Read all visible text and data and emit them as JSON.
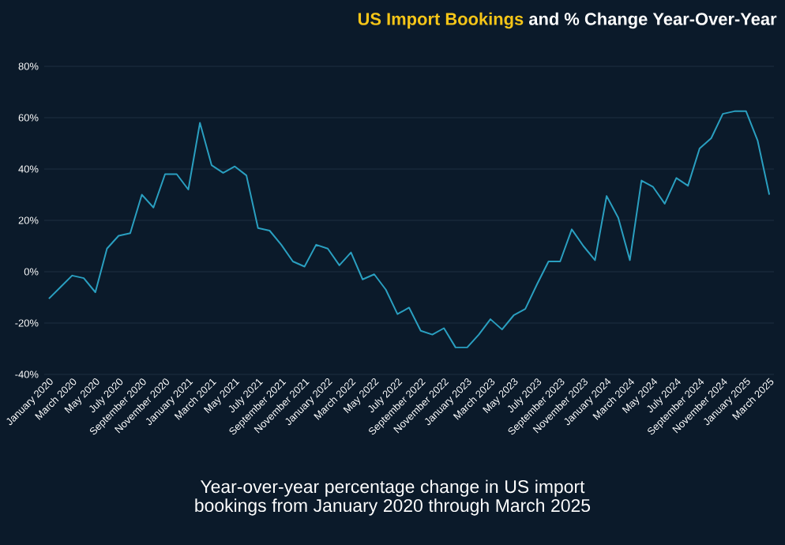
{
  "chart_data": {
    "type": "line",
    "title": "US Import Bookings",
    "subtitle": "and % Change Year-Over-Year",
    "categories": [
      "January 2020",
      null,
      "March 2020",
      null,
      "May 2020",
      null,
      "July 2020",
      null,
      "September 2020",
      null,
      "November 2020",
      null,
      "January 2021",
      null,
      "March 2021",
      null,
      "May 2021",
      null,
      "July 2021",
      null,
      "September 2021",
      null,
      "November 2021",
      null,
      "January 2022",
      null,
      "March 2022",
      null,
      "May 2022",
      null,
      "July 2022",
      null,
      "September 2022",
      null,
      "November 2022",
      null,
      "January 2023",
      null,
      "March 2023",
      null,
      "May 2023",
      null,
      "July 2023",
      null,
      "September 2023",
      null,
      "November 2023",
      null,
      "January 2024",
      null,
      "March 2024",
      null,
      "May 2024",
      null,
      "July 2024",
      null,
      "September 2024",
      null,
      "November 2024",
      null,
      "January 2025",
      null,
      "March 2025"
    ],
    "values": [
      -10.5,
      -6,
      -1.5,
      -2.5,
      -8,
      9,
      14,
      15,
      30,
      25,
      38,
      38,
      32,
      58,
      41.5,
      38.5,
      41,
      37.5,
      17,
      16,
      10.5,
      4,
      2,
      10.5,
      9,
      2.5,
      7.5,
      -3,
      -1,
      -7,
      -16.5,
      -14,
      -23,
      -24.5,
      -22,
      -29.5,
      -29.5,
      -24.5,
      -18.5,
      -22.5,
      -17,
      -14.5,
      -5,
      4,
      4,
      16.5,
      10,
      4.5,
      29.5,
      21,
      4.5,
      35.5,
      33,
      26.5,
      36.5,
      33.5,
      48,
      52,
      61.5,
      62.5,
      62.5,
      51,
      30
    ],
    "color": "#2a9fc0",
    "ylim": [
      -40,
      80
    ],
    "yticks": [
      {
        "value": -40,
        "label": "-40%"
      },
      {
        "value": -20,
        "label": "-20%"
      },
      {
        "value": 0,
        "label": "0%"
      },
      {
        "value": 20,
        "label": "20%"
      },
      {
        "value": 40,
        "label": "40%"
      },
      {
        "value": 60,
        "label": "60%"
      },
      {
        "value": 80,
        "label": "80%"
      }
    ],
    "grid": "y",
    "annotations": [
      "Year-over-year percentage change in US import bookings from January 2020 through March 2025"
    ]
  }
}
